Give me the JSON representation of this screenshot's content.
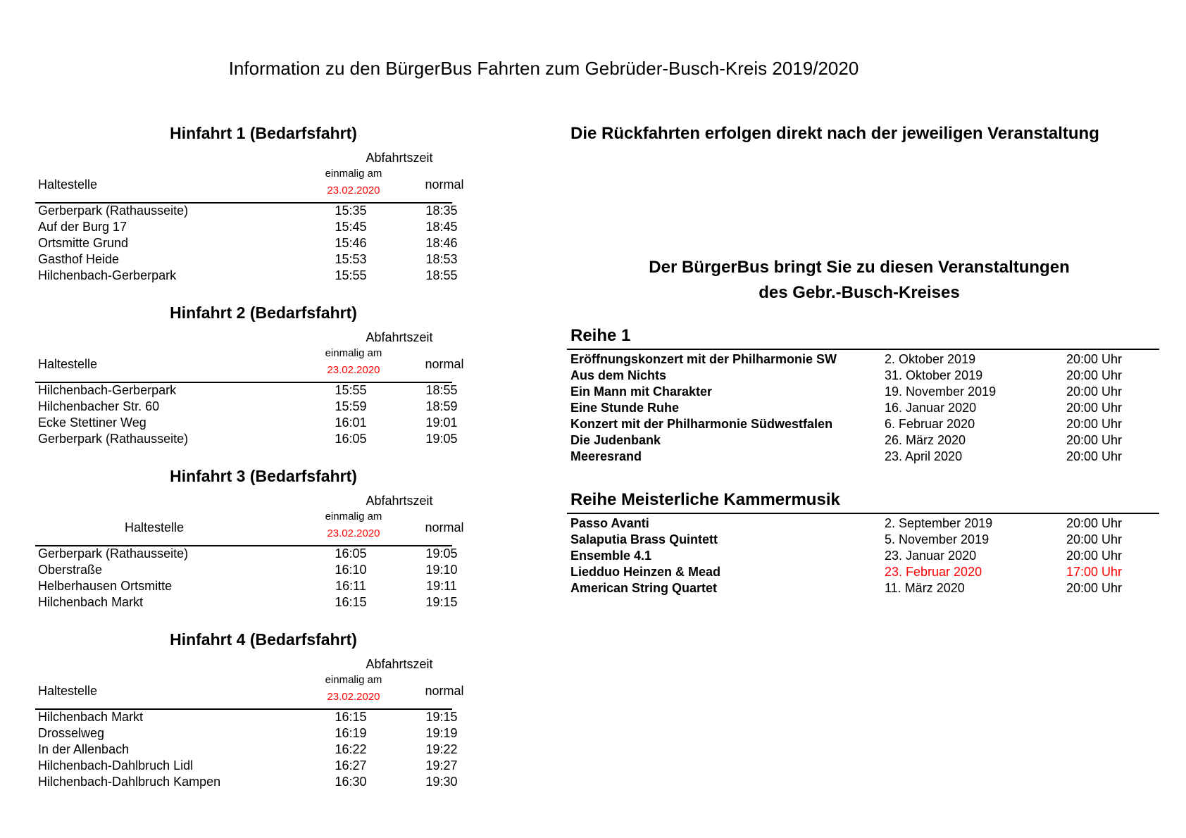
{
  "title": "Information zu den BürgerBus Fahrten zum Gebrüder-Busch-Kreis 2019/2020",
  "trip_header": {
    "abfahrtszeit": "Abfahrtszeit",
    "einmalig": "einmalig am",
    "date": "23.02.2020",
    "haltestelle": "Haltestelle",
    "normal": "normal"
  },
  "trips": [
    {
      "heading": "Hinfahrt 1 (Bedarfsfahrt)",
      "rows": [
        [
          "Gerberpark (Rathausseite)",
          "15:35",
          "18:35"
        ],
        [
          "Auf der Burg 17",
          "15:45",
          "18:45"
        ],
        [
          "Ortsmitte Grund",
          "15:46",
          "18:46"
        ],
        [
          "Gasthof Heide",
          "15:53",
          "18:53"
        ],
        [
          "Hilchenbach-Gerberpark",
          "15:55",
          "18:55"
        ]
      ]
    },
    {
      "heading": "Hinfahrt 2 (Bedarfsfahrt)",
      "rows": [
        [
          "Hilchenbach-Gerberpark",
          "15:55",
          "18:55"
        ],
        [
          "Hilchenbacher Str. 60",
          "15:59",
          "18:59"
        ],
        [
          "Ecke Stettiner Weg",
          "16:01",
          "19:01"
        ],
        [
          "Gerberpark (Rathausseite)",
          "16:05",
          "19:05"
        ]
      ]
    },
    {
      "heading": "Hinfahrt 3 (Bedarfsfahrt)",
      "center_halt": true,
      "rows": [
        [
          "Gerberpark (Rathausseite)",
          "16:05",
          "19:05"
        ],
        [
          "Oberstraße",
          "16:10",
          "19:10"
        ],
        [
          "Helberhausen Ortsmitte",
          "16:11",
          "19:11"
        ],
        [
          "Hilchenbach Markt",
          "16:15",
          "19:15"
        ]
      ]
    },
    {
      "heading": "Hinfahrt 4 (Bedarfsfahrt)",
      "rows": [
        [
          "Hilchenbach Markt",
          "16:15",
          "19:15"
        ],
        [
          "Drosselweg",
          "16:19",
          "19:19"
        ],
        [
          "In der Allenbach",
          "16:22",
          "19:22"
        ],
        [
          "Hilchenbach-Dahlbruch Lidl",
          "16:27",
          "19:27"
        ],
        [
          "Hilchenbach-Dahlbruch Kampen",
          "16:30",
          "19:30"
        ]
      ]
    }
  ],
  "rueckfahrt_note": "Die Rückfahrten erfolgen direkt nach der jeweiligen Veranstaltung",
  "events_intro": [
    "Der BürgerBus bringt Sie zu diesen Veranstaltungen",
    "des Gebr.-Busch-Kreises"
  ],
  "highlight_color": "#ff0000",
  "series": [
    {
      "heading": "Reihe 1",
      "events": [
        {
          "title": "Eröffnungskonzert mit der Philharmonie SW",
          "date": "2. Oktober 2019",
          "time": "20:00 Uhr"
        },
        {
          "title": "Aus dem Nichts",
          "date": "31. Oktober 2019",
          "time": "20:00 Uhr"
        },
        {
          "title": "Ein Mann mit Charakter",
          "date": "19. November 2019",
          "time": "20:00 Uhr"
        },
        {
          "title": "Eine Stunde Ruhe",
          "date": "16. Januar 2020",
          "time": "20:00 Uhr"
        },
        {
          "title": "Konzert mit der Philharmonie Südwestfalen",
          "date": "6. Februar 2020",
          "time": "20:00 Uhr"
        },
        {
          "title": "Die Judenbank",
          "date": "26. März 2020",
          "time": "20:00 Uhr"
        },
        {
          "title": "Meeresrand",
          "date": "23. April 2020",
          "time": "20:00 Uhr"
        }
      ]
    },
    {
      "heading": "Reihe Meisterliche Kammermusik",
      "events": [
        {
          "title": "Passo Avanti",
          "date": "2. September 2019",
          "time": "20:00 Uhr"
        },
        {
          "title": "Salaputia Brass Quintett",
          "date": "5. November 2019",
          "time": "20:00 Uhr"
        },
        {
          "title": "Ensemble 4.1",
          "date": "23. Januar 2020",
          "time": "20:00 Uhr"
        },
        {
          "title": "Liedduo Heinzen & Mead",
          "date": "23. Februar 2020",
          "time": "17:00 Uhr",
          "highlight": true
        },
        {
          "title": "American String Quartet",
          "date": "11. März 2020",
          "time": "20:00 Uhr"
        }
      ]
    }
  ]
}
